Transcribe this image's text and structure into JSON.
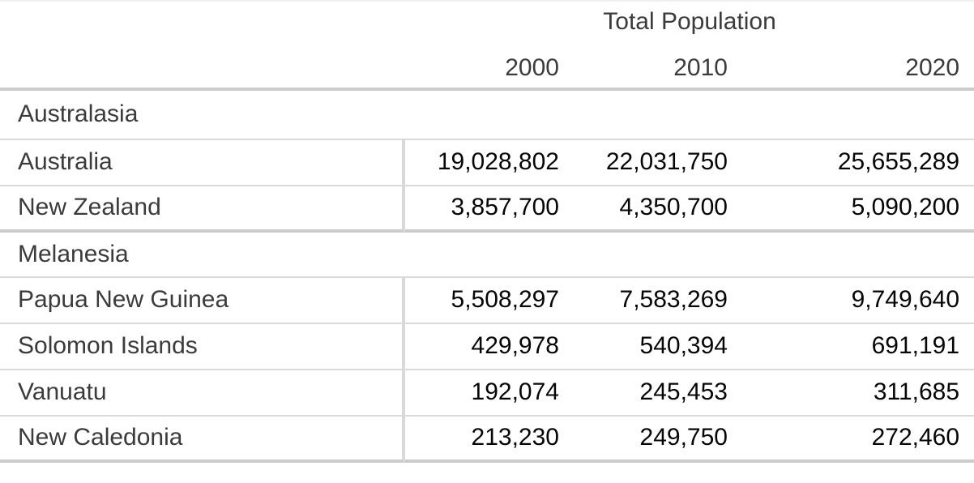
{
  "header": {
    "title": "Total Population",
    "year_columns": [
      "2000",
      "2010",
      "2020"
    ]
  },
  "table": {
    "sections": [
      {
        "group": "Australasia",
        "rows": [
          {
            "name": "Australia",
            "values": [
              "19,028,802",
              "22,031,750",
              "25,655,289"
            ]
          },
          {
            "name": "New Zealand",
            "values": [
              "3,857,700",
              "4,350,700",
              "5,090,200"
            ]
          }
        ]
      },
      {
        "group": "Melanesia",
        "rows": [
          {
            "name": "Papua New Guinea",
            "values": [
              "5,508,297",
              "7,583,269",
              "9,749,640"
            ]
          },
          {
            "name": "Solomon Islands",
            "values": [
              "429,978",
              "540,394",
              "691,191"
            ]
          },
          {
            "name": "Vanuatu",
            "values": [
              "192,074",
              "245,453",
              "311,685"
            ]
          },
          {
            "name": "New Caledonia",
            "values": [
              "213,230",
              "249,750",
              "272,460"
            ]
          }
        ]
      }
    ]
  },
  "colors": {
    "label_text": "#3b3b3b",
    "number_text": "#060606",
    "thin_rule": "#d9d9d9",
    "thick_rule": "#cbcbcb",
    "background": "#ffffff"
  },
  "chart_data": {
    "type": "table",
    "title": "Total Population",
    "columns": [
      "2000",
      "2010",
      "2020"
    ],
    "sections": [
      {
        "group": "Australasia",
        "rows": [
          {
            "name": "Australia",
            "values": [
              19028802,
              22031750,
              25655289
            ]
          },
          {
            "name": "New Zealand",
            "values": [
              3857700,
              4350700,
              5090200
            ]
          }
        ]
      },
      {
        "group": "Melanesia",
        "rows": [
          {
            "name": "Papua New Guinea",
            "values": [
              5508297,
              7583269,
              9749640
            ]
          },
          {
            "name": "Solomon Islands",
            "values": [
              429978,
              540394,
              691191
            ]
          },
          {
            "name": "Vanuatu",
            "values": [
              192074,
              245453,
              311685
            ]
          },
          {
            "name": "New Caledonia",
            "values": [
              213230,
              249750,
              272460
            ]
          }
        ]
      }
    ]
  }
}
